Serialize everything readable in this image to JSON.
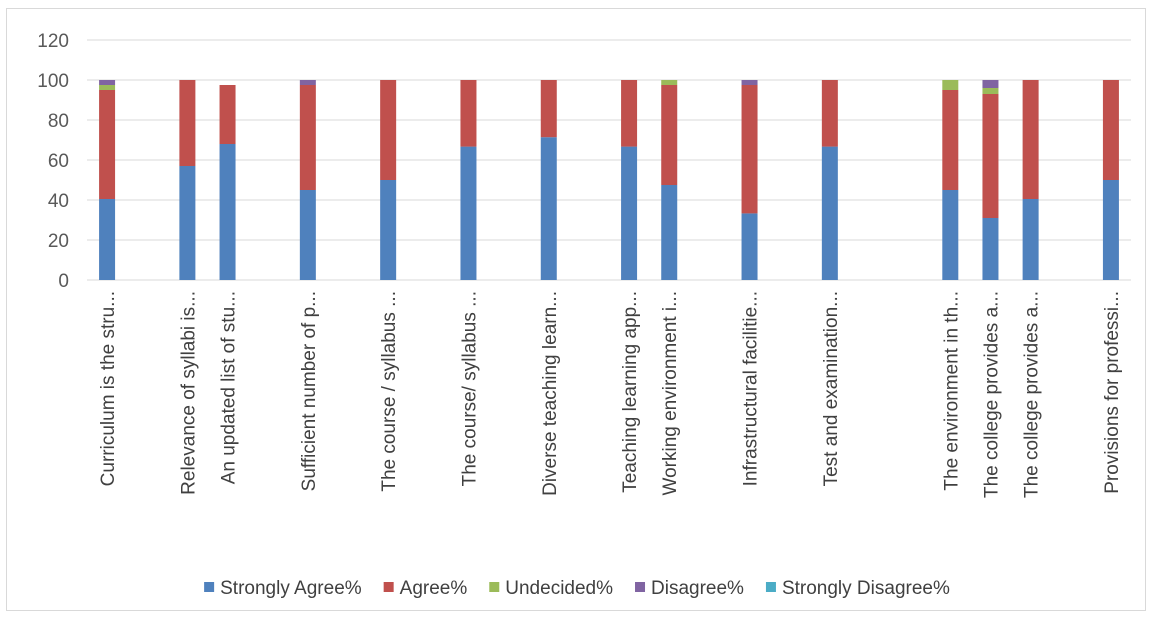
{
  "chart_data": {
    "type": "bar",
    "stacked": true,
    "ylim": [
      0,
      120
    ],
    "yticks": [
      0,
      20,
      40,
      60,
      80,
      100,
      120
    ],
    "grid": true,
    "legend_position": "bottom",
    "slots": 26,
    "categories": [
      {
        "label": "Curriculum is the stru...",
        "slot": 0
      },
      {
        "label": "Relevance of syllabi is...",
        "slot": 2
      },
      {
        "label": "An updated list of stu...",
        "slot": 3
      },
      {
        "label": "Sufficient number of p...",
        "slot": 5
      },
      {
        "label": "The course / syllabus ...",
        "slot": 7
      },
      {
        "label": "The course/ syllabus ...",
        "slot": 9
      },
      {
        "label": "Diverse teaching learn...",
        "slot": 11
      },
      {
        "label": "Teaching learning app...",
        "slot": 13
      },
      {
        "label": "Working environment i...",
        "slot": 14
      },
      {
        "label": "Infrastructural facilitie...",
        "slot": 16
      },
      {
        "label": "Test and examination...",
        "slot": 18
      },
      {
        "label": "The environment in th...",
        "slot": 21
      },
      {
        "label": "The college provides a...",
        "slot": 22
      },
      {
        "label": "The college provides a...",
        "slot": 23
      },
      {
        "label": "Provisions for professi...",
        "slot": 25
      }
    ],
    "series": [
      {
        "name": "Strongly Agree%",
        "color": "#4f81bd",
        "values": [
          40.5,
          57,
          68,
          45,
          50,
          66.7,
          71.4,
          66.7,
          47.5,
          33.3,
          66.7,
          45,
          31,
          40.5,
          50
        ]
      },
      {
        "name": "Agree%",
        "color": "#c0504d",
        "values": [
          54.5,
          43,
          29.5,
          52.5,
          50,
          33.3,
          28.6,
          33.3,
          50,
          64.2,
          33.3,
          50,
          62,
          59.5,
          50
        ]
      },
      {
        "name": "Undecided%",
        "color": "#9bbb59",
        "values": [
          2.5,
          0,
          0,
          0,
          0,
          0,
          0,
          0,
          2.5,
          0,
          0,
          5,
          3,
          0,
          0
        ]
      },
      {
        "name": "Disagree%",
        "color": "#8064a2",
        "values": [
          2.5,
          0,
          0,
          2.5,
          0,
          0,
          0,
          0,
          0,
          2.5,
          0,
          0,
          4,
          0,
          0
        ]
      },
      {
        "name": "Strongly Disagree%",
        "color": "#4bacc6",
        "values": [
          0,
          0,
          0,
          0,
          0,
          0,
          0,
          0,
          0,
          0,
          0,
          0,
          0,
          0,
          0
        ]
      }
    ]
  }
}
